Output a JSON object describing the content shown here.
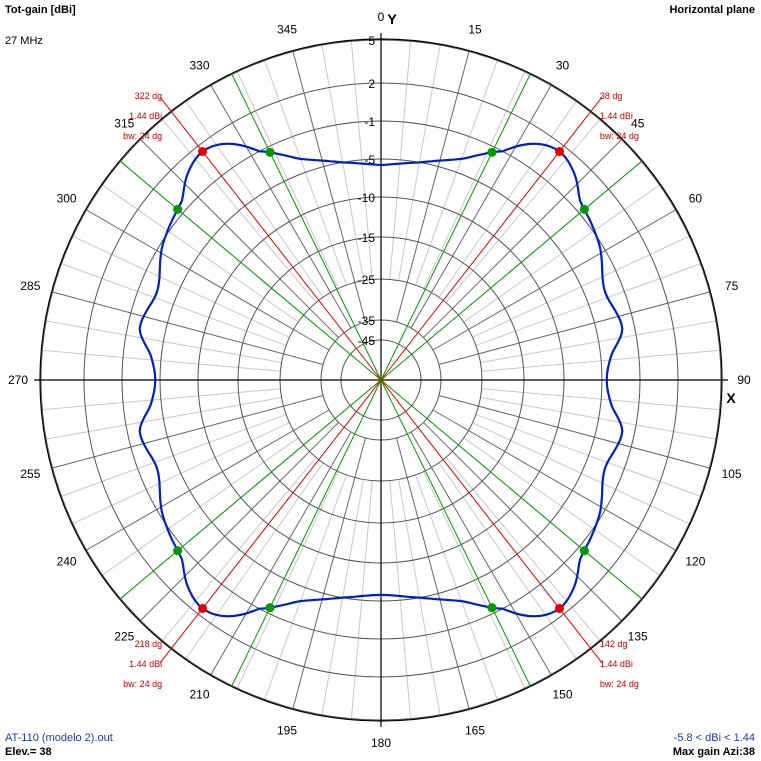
{
  "header": {
    "title": "Tot-gain [dBi]",
    "frequency": "27 MHz",
    "plane": "Horizontal plane"
  },
  "footer": {
    "file": "AT-110 (modelo 2).out",
    "elevation": "Elev.= 38",
    "gain_range": "-5.8 < dBi < 1.44",
    "max_gain": "Max gain Azi:38"
  },
  "colors": {
    "pattern": "#0020c0",
    "max_marker": "#e00000",
    "halfpower_marker": "#009900",
    "grid": "#000000",
    "text_red": "#c00000",
    "text_blue": "#1a3bb3"
  },
  "chart_data": {
    "type": "polar",
    "axis_x_label": "X",
    "axis_y_label": "Y",
    "angle_ticks": [
      "0",
      "15",
      "30",
      "45",
      "60",
      "75",
      "90",
      "105",
      "120",
      "135",
      "150",
      "165",
      "180",
      "195",
      "210",
      "225",
      "240",
      "255",
      "270",
      "285",
      "300",
      "315",
      "330",
      "345"
    ],
    "radial_ticks": [
      {
        "label": "5",
        "dbi": 5
      },
      {
        "label": "2",
        "dbi": 2
      },
      {
        "label": "-1",
        "dbi": -1
      },
      {
        "label": "-5",
        "dbi": -5
      },
      {
        "label": "-10",
        "dbi": -10
      },
      {
        "label": "-15",
        "dbi": -15
      },
      {
        "label": "-25",
        "dbi": -25
      },
      {
        "label": "-35",
        "dbi": -35
      },
      {
        "label": "-45",
        "dbi": -45
      }
    ],
    "series": [
      {
        "azimuth_deg": [
          0,
          10,
          20,
          28,
          33,
          38,
          43,
          48,
          58,
          68,
          78,
          84,
          90,
          96,
          102,
          112,
          122,
          132,
          137,
          142,
          147,
          152,
          160,
          170,
          180,
          190,
          200,
          208,
          213,
          218,
          223,
          228,
          238,
          248,
          258,
          264,
          270,
          276,
          282,
          292,
          302,
          312,
          317,
          322,
          327,
          332,
          340,
          350,
          360
        ],
        "gain_dbi": [
          -5.8,
          -5.0,
          -3.5,
          -1.0,
          0.8,
          1.44,
          0.9,
          -0.3,
          -1.2,
          -2.9,
          -2.3,
          -3.9,
          -4.5,
          -3.9,
          -2.3,
          -2.9,
          -1.2,
          -0.3,
          0.9,
          1.44,
          0.8,
          -1.0,
          -3.5,
          -5.0,
          -5.8,
          -5.0,
          -3.5,
          -1.0,
          0.8,
          1.44,
          0.9,
          -0.3,
          -1.2,
          -2.9,
          -2.3,
          -3.9,
          -4.5,
          -3.9,
          -2.3,
          -2.9,
          -1.2,
          -0.3,
          0.9,
          1.44,
          0.8,
          -1.0,
          -3.5,
          -5.0,
          -5.8
        ]
      }
    ],
    "max_gain_lobes": [
      {
        "azimuth_deg": 38,
        "label_angle": "38 dg",
        "label_gain": "1.44 dBi",
        "label_bw": "bw: 24 dg",
        "halfpower_deg": [
          26,
          50
        ]
      },
      {
        "azimuth_deg": 142,
        "label_angle": "142 dg",
        "label_gain": "1.44 dBi",
        "label_bw": "bw: 24 dg",
        "halfpower_deg": [
          130,
          154
        ]
      },
      {
        "azimuth_deg": 218,
        "label_angle": "218 dg",
        "label_gain": "1.44 dBi",
        "label_bw": "bw: 24 dg",
        "halfpower_deg": [
          206,
          230
        ]
      },
      {
        "azimuth_deg": 322,
        "label_angle": "322 dg",
        "label_gain": "1.44 dBi",
        "label_bw": "bw: 24 dg",
        "halfpower_deg": [
          310,
          334
        ]
      }
    ]
  }
}
